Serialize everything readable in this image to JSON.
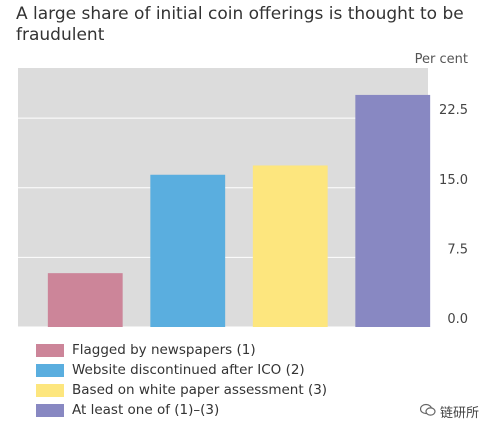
{
  "title": "A large share of initial coin offerings is thought to be fraudulent",
  "unit_label": "Per cent",
  "chart_data": {
    "type": "bar",
    "categories": [
      "Flagged by newspapers (1)",
      "Website discontinued after ICO (2)",
      "Based on white paper assessment (3)",
      "At least one of (1)–(3)"
    ],
    "values": [
      5.8,
      16.4,
      17.4,
      25.0
    ],
    "colors": [
      "#cc8599",
      "#5aaedf",
      "#fde67e",
      "#8888c2"
    ],
    "yticks": [
      "0.0",
      "7.5",
      "15.0",
      "22.5"
    ],
    "ylim": [
      0,
      27.9
    ],
    "ytick_position": "right",
    "grid": true,
    "plot_background": "#dcdcdc",
    "legend_position": "bottom-left"
  },
  "legend": [
    {
      "label": "Flagged by newspapers (1)",
      "color": "#cc8599"
    },
    {
      "label": "Website discontinued after ICO (2)",
      "color": "#5aaedf"
    },
    {
      "label": "Based on white paper assessment (3)",
      "color": "#fde67e"
    },
    {
      "label": "At least one of (1)–(3)",
      "color": "#8888c2"
    }
  ],
  "watermark": {
    "icon": "wechat-icon",
    "text": "链研所"
  }
}
